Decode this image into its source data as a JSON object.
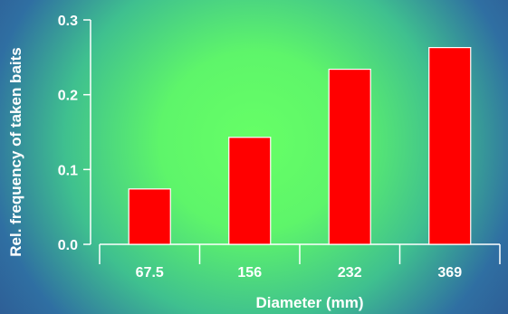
{
  "chart_data": {
    "type": "bar",
    "categories": [
      "67.5",
      "156",
      "232",
      "369"
    ],
    "values": [
      0.074,
      0.143,
      0.234,
      0.263
    ],
    "xlabel": "Diameter (mm)",
    "ylabel": "Rel. frequency of taken baits",
    "ylim": [
      0,
      0.3
    ],
    "yticks": [
      "0.0",
      "0.1",
      "0.2",
      "0.3"
    ],
    "grid": false,
    "colors": {
      "bar": "#ff0000",
      "bar_edge": "#ffffff",
      "axis": "#ffffff",
      "text": "#ffffff"
    }
  }
}
